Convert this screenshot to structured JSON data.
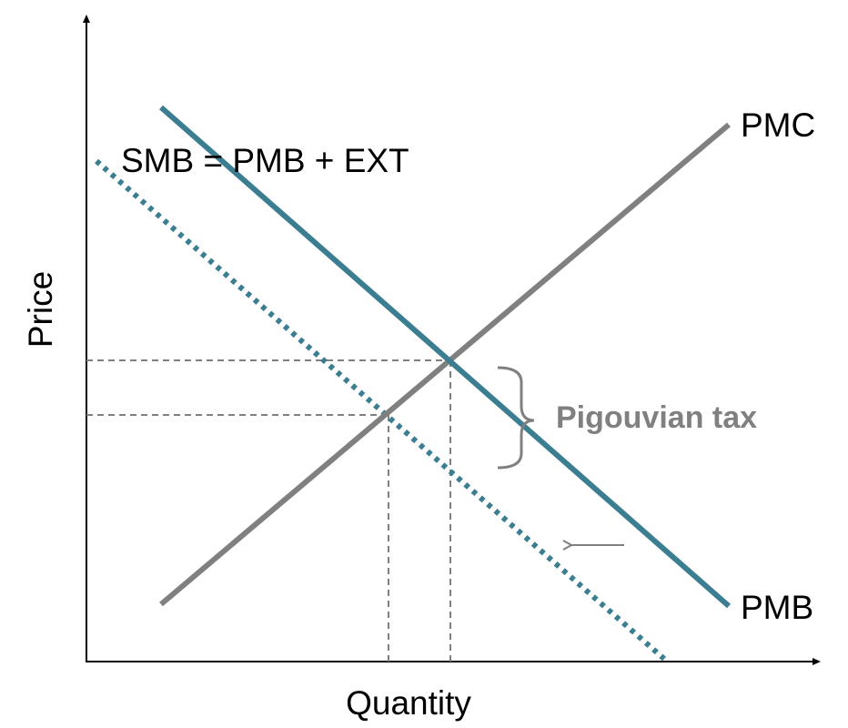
{
  "labels": {
    "y_axis": "Price",
    "x_axis": "Quantity",
    "pmc": "PMC",
    "pmb": "PMB",
    "smb": "SMB = PMB + EXT",
    "tax": "Pigouvian tax"
  },
  "colors": {
    "axis": "#000000",
    "pmc_line": "#808080",
    "pmb_line": "#3b7d91",
    "smb_line": "#3b7d91",
    "guide_line": "#808080",
    "tax_text": "#808080",
    "arrow": "#808080"
  },
  "line_styles": {
    "pmc": "solid",
    "pmb": "solid",
    "smb": "dotted",
    "guides": "dashed"
  },
  "icons": {
    "shift_arrow": "left-arrow-icon",
    "tax_brace": "right-curly-brace-icon"
  }
}
